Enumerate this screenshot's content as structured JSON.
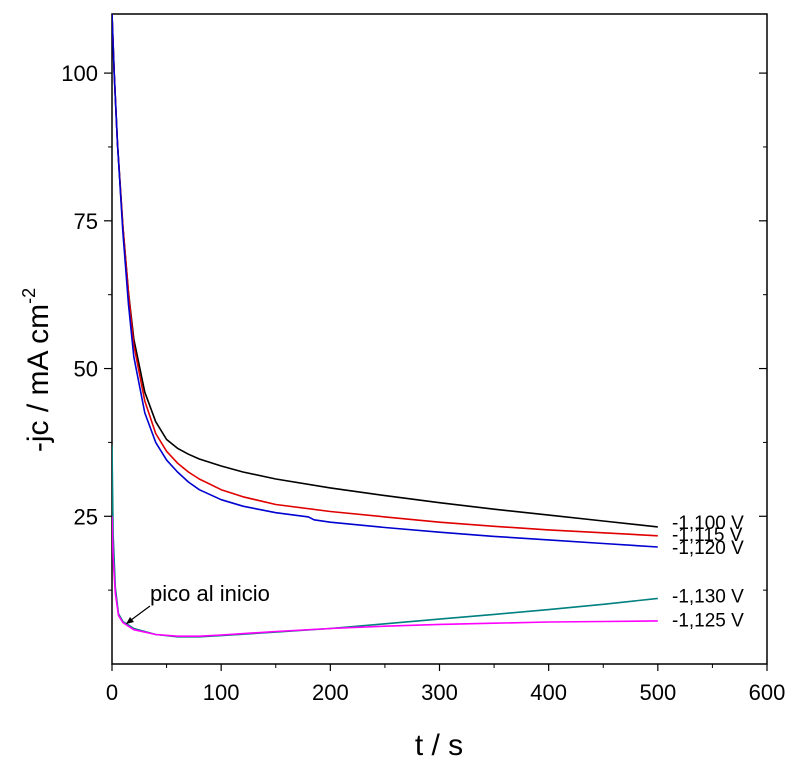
{
  "chart_data": {
    "type": "line",
    "xlabel": "t / s",
    "ylabel_main": "-jc / mA cm",
    "ylabel_sup": "-2",
    "xlim": [
      0,
      600
    ],
    "ylim": [
      0,
      110
    ],
    "xticks": [
      0,
      100,
      200,
      300,
      400,
      500,
      600
    ],
    "xtick_labels": [
      "0",
      "100",
      "200",
      "300",
      "400",
      "500",
      "600"
    ],
    "yticks": [
      25,
      50,
      75,
      100
    ],
    "ytick_labels": [
      "25",
      "50",
      "75",
      "100"
    ],
    "grid": false,
    "legend": "none",
    "annotation": {
      "text": "pico al inicio",
      "x": 10,
      "y": 8.5
    },
    "series": [
      {
        "name": "-1,100 V",
        "color": "#000000",
        "points": [
          [
            0,
            110
          ],
          [
            2,
            100
          ],
          [
            5,
            88
          ],
          [
            10,
            74
          ],
          [
            15,
            63
          ],
          [
            20,
            55
          ],
          [
            30,
            46
          ],
          [
            40,
            41
          ],
          [
            50,
            38
          ],
          [
            60,
            36.5
          ],
          [
            70,
            35.5
          ],
          [
            80,
            34.7
          ],
          [
            100,
            33.5
          ],
          [
            120,
            32.5
          ],
          [
            150,
            31.3
          ],
          [
            200,
            29.8
          ],
          [
            250,
            28.5
          ],
          [
            300,
            27.3
          ],
          [
            350,
            26.2
          ],
          [
            400,
            25.2
          ],
          [
            450,
            24.2
          ],
          [
            500,
            23.2
          ]
        ]
      },
      {
        "name": "-1,115 V",
        "color": "#e00000",
        "points": [
          [
            0,
            110
          ],
          [
            2,
            100
          ],
          [
            5,
            88
          ],
          [
            10,
            74
          ],
          [
            15,
            63
          ],
          [
            20,
            54
          ],
          [
            30,
            44.5
          ],
          [
            40,
            39
          ],
          [
            50,
            36
          ],
          [
            60,
            34
          ],
          [
            70,
            32.5
          ],
          [
            80,
            31.3
          ],
          [
            100,
            29.5
          ],
          [
            120,
            28.3
          ],
          [
            150,
            27
          ],
          [
            200,
            25.8
          ],
          [
            250,
            24.9
          ],
          [
            300,
            24
          ],
          [
            350,
            23.3
          ],
          [
            400,
            22.7
          ],
          [
            450,
            22.2
          ],
          [
            500,
            21.7
          ]
        ]
      },
      {
        "name": "-1,120 V",
        "color": "#0000d0",
        "points": [
          [
            0,
            110
          ],
          [
            2,
            100
          ],
          [
            5,
            88
          ],
          [
            10,
            73
          ],
          [
            15,
            61
          ],
          [
            20,
            52
          ],
          [
            30,
            42.5
          ],
          [
            40,
            37.5
          ],
          [
            50,
            34.5
          ],
          [
            60,
            32.5
          ],
          [
            70,
            30.8
          ],
          [
            80,
            29.5
          ],
          [
            100,
            27.8
          ],
          [
            120,
            26.7
          ],
          [
            150,
            25.6
          ],
          [
            180,
            24.9
          ],
          [
            185,
            24.4
          ],
          [
            200,
            24
          ],
          [
            250,
            23.1
          ],
          [
            300,
            22.3
          ],
          [
            350,
            21.6
          ],
          [
            400,
            21
          ],
          [
            450,
            20.4
          ],
          [
            500,
            19.8
          ]
        ]
      },
      {
        "name": "-1,130 V",
        "color": "#008080",
        "points": [
          [
            0,
            37
          ],
          [
            1,
            22
          ],
          [
            3,
            13
          ],
          [
            6,
            8.5
          ],
          [
            10,
            7.2
          ],
          [
            20,
            6
          ],
          [
            40,
            5
          ],
          [
            60,
            4.6
          ],
          [
            80,
            4.6
          ],
          [
            100,
            4.8
          ],
          [
            150,
            5.4
          ],
          [
            200,
            6
          ],
          [
            250,
            6.8
          ],
          [
            300,
            7.6
          ],
          [
            350,
            8.4
          ],
          [
            400,
            9.2
          ],
          [
            450,
            10.1
          ],
          [
            500,
            11.1
          ]
        ]
      },
      {
        "name": "-1,125 V",
        "color": "#ff00ff",
        "points": [
          [
            0,
            25
          ],
          [
            1,
            18
          ],
          [
            3,
            12
          ],
          [
            6,
            8.2
          ],
          [
            10,
            7
          ],
          [
            20,
            5.8
          ],
          [
            40,
            5
          ],
          [
            60,
            4.7
          ],
          [
            80,
            4.7
          ],
          [
            100,
            4.9
          ],
          [
            150,
            5.5
          ],
          [
            200,
            6
          ],
          [
            250,
            6.4
          ],
          [
            300,
            6.7
          ],
          [
            350,
            6.9
          ],
          [
            400,
            7.1
          ],
          [
            450,
            7.2
          ],
          [
            500,
            7.3
          ]
        ]
      }
    ],
    "series_label_positions": [
      {
        "name": "-1,100 V",
        "y": 24.0
      },
      {
        "name": "-1,115 V",
        "y": 22.0
      },
      {
        "name": "-1,120 V",
        "y": 19.8
      },
      {
        "name": "-1,130 V",
        "y": 11.6
      },
      {
        "name": "-1,125 V",
        "y": 7.5
      }
    ]
  }
}
